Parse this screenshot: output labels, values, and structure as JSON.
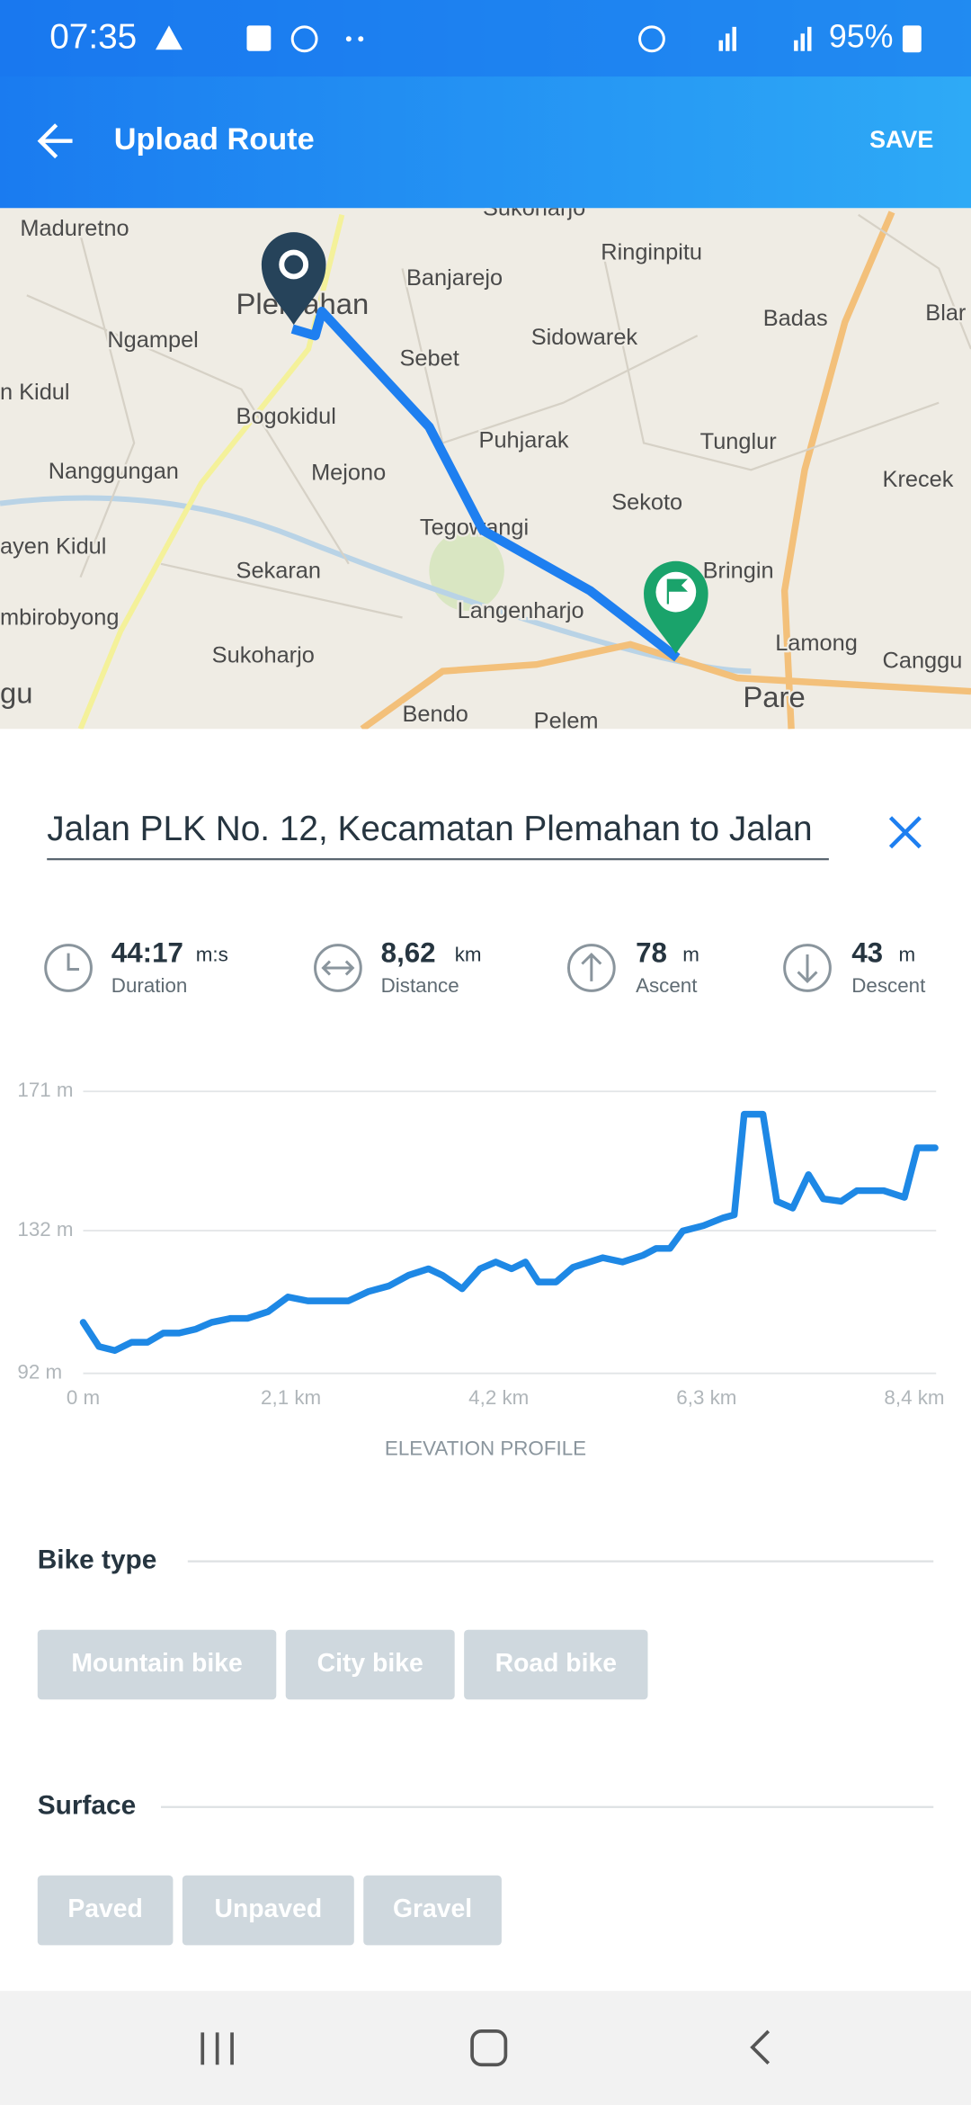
{
  "status_bar": {
    "time": "07:35",
    "battery": "95%"
  },
  "header": {
    "title": "Upload Route",
    "action": "SAVE"
  },
  "map": {
    "labels": [
      "Sukoharjo",
      "Maduretno",
      "Ringinpitu",
      "Banjarejo",
      "Plemahan",
      "Ngampel",
      "Sebet",
      "Sidowarek",
      "Badas",
      "Blar",
      "n Kidul",
      "Bogokidul",
      "Puhjarak",
      "Tunglur",
      "Nanggungan",
      "Mejono",
      "Krecek",
      "Sekoto",
      "ayen Kidul",
      "Tegowangi",
      "Bringin",
      "Sekaran",
      "Langenharjo",
      "mbirobyong",
      "Lamong",
      "Canggu",
      "Sukoharjo",
      "gu",
      "Pare",
      "Bendo",
      "Pelem"
    ]
  },
  "route_name": "Jalan PLK No. 12, Kecamatan Plemahan to Jalan",
  "stats": [
    {
      "value": "44:17",
      "unit": "m:s",
      "label": "Duration"
    },
    {
      "value": "8,62",
      "unit": "km",
      "label": "Distance"
    },
    {
      "value": "78",
      "unit": "m",
      "label": "Ascent"
    },
    {
      "value": "43",
      "unit": "m",
      "label": "Descent"
    }
  ],
  "chart_data": {
    "type": "line",
    "title": "ELEVATION PROFILE",
    "color": "#1e88e5",
    "grid": true,
    "x": [
      0,
      0.16,
      0.32,
      0.49,
      0.65,
      0.81,
      0.97,
      1.14,
      1.3,
      1.49,
      1.66,
      1.87,
      2.07,
      2.27,
      2.68,
      2.88,
      3.09,
      3.29,
      3.49,
      3.63,
      3.83,
      4.01,
      4.17,
      4.33,
      4.47,
      4.6,
      4.78,
      4.95,
      5.25,
      5.45,
      5.66,
      5.79,
      5.93,
      6.06,
      6.27,
      6.47,
      6.58,
      6.68,
      6.87,
      7.01,
      7.17,
      7.33,
      7.48,
      7.66,
      7.82,
      8.09,
      8.3,
      8.43,
      8.61
    ],
    "values": [
      106.3,
      99.5,
      98.4,
      100.7,
      100.7,
      103.3,
      103.3,
      104.4,
      106.3,
      107.4,
      107.4,
      109.3,
      113.4,
      112.3,
      112.3,
      114.9,
      116.5,
      119.5,
      121.3,
      119.5,
      115.7,
      121.3,
      123.2,
      121.3,
      123.2,
      117.6,
      117.6,
      121.7,
      124.4,
      123.2,
      125.1,
      127,
      127,
      131.9,
      133.4,
      135.6,
      136.4,
      164.6,
      164.6,
      140.2,
      138.3,
      147.7,
      140.9,
      140.2,
      143.2,
      143.2,
      141.3,
      155.2,
      155.2
    ],
    "xlim": [
      0,
      8.62
    ],
    "ylim": [
      92,
      171
    ],
    "xticks": [
      {
        "value": 0,
        "label": "0 m"
      },
      {
        "value": 2.1,
        "label": "2,1 km"
      },
      {
        "value": 4.2,
        "label": "4,2 km"
      },
      {
        "value": 6.3,
        "label": "6,3 km"
      },
      {
        "value": 8.4,
        "label": "8,4 km"
      }
    ],
    "yticks": [
      {
        "value": 92,
        "label": "92 m"
      },
      {
        "value": 132,
        "label": "132 m"
      },
      {
        "value": 171,
        "label": "171 m"
      }
    ]
  },
  "bike_type": {
    "title": "Bike type",
    "options": [
      "Mountain bike",
      "City bike",
      "Road bike"
    ]
  },
  "surface": {
    "title": "Surface",
    "options": [
      "Paved",
      "Unpaved",
      "Gravel"
    ]
  }
}
